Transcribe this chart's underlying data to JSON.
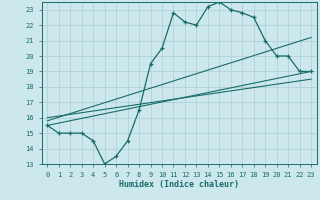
{
  "xlabel": "Humidex (Indice chaleur)",
  "bg_color": "#cce8ec",
  "line_color": "#1a6b6b",
  "grid_color": "#aacdd4",
  "xlim": [
    -0.5,
    23.5
  ],
  "ylim": [
    13,
    23.5
  ],
  "yticks": [
    13,
    14,
    15,
    16,
    17,
    18,
    19,
    20,
    21,
    22,
    23
  ],
  "xticks": [
    0,
    1,
    2,
    3,
    4,
    5,
    6,
    7,
    8,
    9,
    10,
    11,
    12,
    13,
    14,
    15,
    16,
    17,
    18,
    19,
    20,
    21,
    22,
    23
  ],
  "main_x": [
    0,
    1,
    2,
    3,
    4,
    5,
    6,
    7,
    8,
    9,
    10,
    11,
    12,
    13,
    14,
    15,
    16,
    17,
    18,
    19,
    20,
    21,
    22,
    23
  ],
  "main_y": [
    15.5,
    15.0,
    15.0,
    15.0,
    14.5,
    13.0,
    13.5,
    14.5,
    16.5,
    19.5,
    20.5,
    22.8,
    22.2,
    22.0,
    23.2,
    23.5,
    23.0,
    22.8,
    22.5,
    21.0,
    20.0,
    20.0,
    19.0,
    19.0
  ],
  "line2_x": [
    0,
    23
  ],
  "line2_y": [
    15.5,
    19.0
  ],
  "line3_x": [
    0,
    23
  ],
  "line3_y": [
    15.8,
    21.2
  ],
  "line4_x": [
    0,
    23
  ],
  "line4_y": [
    16.0,
    18.5
  ]
}
